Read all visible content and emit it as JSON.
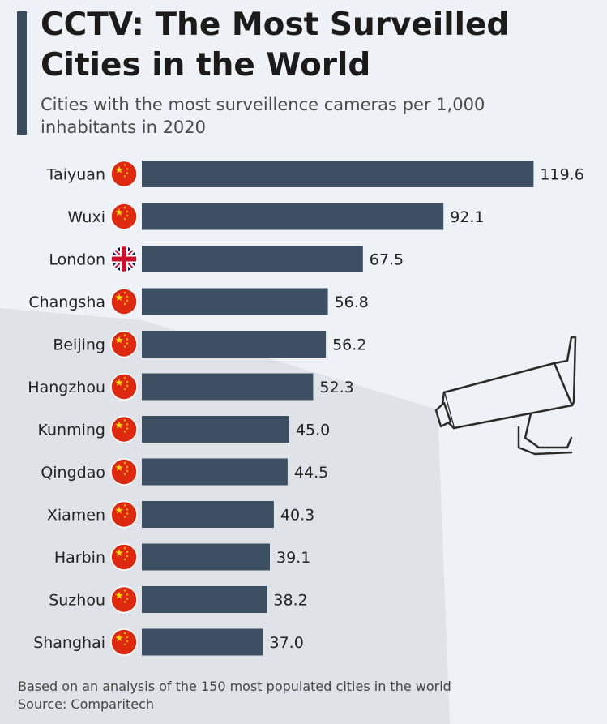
{
  "header": {
    "title": "CCTV: The Most Surveilled Cities in the World",
    "subtitle": "Cities with the most surveillence cameras per 1,000 inhabitants in 2020"
  },
  "footer": {
    "note": "Based on an analysis of the 150 most populated cities in the world",
    "source": "Source: Comparitech"
  },
  "colors": {
    "bar": "#3d4f62",
    "background": "#eef2f6",
    "flag_china": "#de2910",
    "flag_china_star": "#ffde00",
    "flag_uk_blue": "#012169",
    "flag_uk_red": "#c8102e"
  },
  "chart_data": {
    "type": "bar",
    "orientation": "horizontal",
    "title": "CCTV: The Most Surveilled Cities in the World",
    "subtitle": "Cities with the most surveillence cameras per 1,000 inhabitants in 2020",
    "categories": [
      "Taiyuan",
      "Wuxi",
      "London",
      "Changsha",
      "Beijing",
      "Hangzhou",
      "Kunming",
      "Qingdao",
      "Xiamen",
      "Harbin",
      "Suzhou",
      "Shanghai"
    ],
    "values": [
      119.6,
      92.1,
      67.5,
      56.8,
      56.2,
      52.3,
      45.0,
      44.5,
      40.3,
      39.1,
      38.2,
      37.0
    ],
    "labels": [
      "119.6",
      "92.1",
      "67.5",
      "56.8",
      "56.2",
      "52.3",
      "45.0",
      "44.5",
      "40.3",
      "39.1",
      "38.2",
      "37.0"
    ],
    "flags": [
      "china-flag-icon",
      "china-flag-icon",
      "uk-flag-icon",
      "china-flag-icon",
      "china-flag-icon",
      "china-flag-icon",
      "china-flag-icon",
      "china-flag-icon",
      "china-flag-icon",
      "china-flag-icon",
      "china-flag-icon",
      "china-flag-icon"
    ],
    "xlim": [
      0,
      120
    ],
    "grid": false,
    "legend": "none"
  }
}
